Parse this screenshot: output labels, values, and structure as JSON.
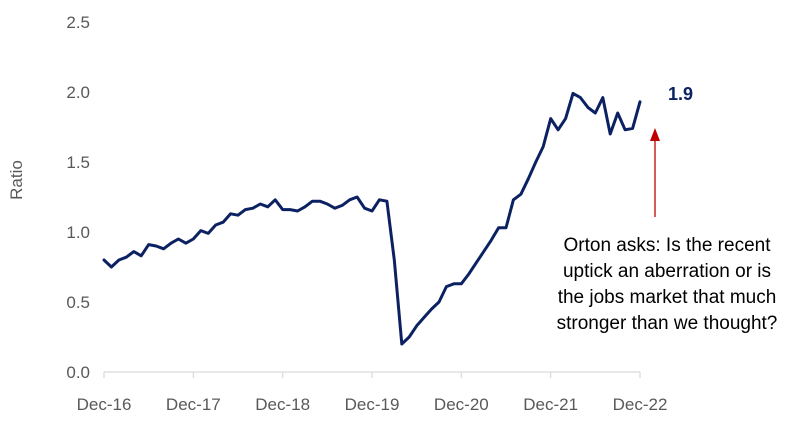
{
  "chart_data": {
    "type": "line",
    "title": "",
    "xlabel": "",
    "ylabel": "Ratio",
    "ylim": [
      0,
      2.5
    ],
    "y_ticks": [
      "0.0",
      "0.5",
      "1.0",
      "1.5",
      "2.0",
      "2.5"
    ],
    "x_ticks": [
      "Dec-16",
      "Dec-17",
      "Dec-18",
      "Dec-19",
      "Dec-20",
      "Dec-21",
      "Dec-22"
    ],
    "grid": false,
    "series": [
      {
        "color": "#0c2161",
        "x_start": "Dec-16",
        "frequency": "monthly",
        "values": [
          0.8,
          0.75,
          0.8,
          0.82,
          0.86,
          0.83,
          0.91,
          0.9,
          0.88,
          0.92,
          0.95,
          0.92,
          0.95,
          1.01,
          0.99,
          1.05,
          1.07,
          1.13,
          1.12,
          1.16,
          1.17,
          1.2,
          1.18,
          1.23,
          1.16,
          1.16,
          1.15,
          1.18,
          1.22,
          1.22,
          1.2,
          1.17,
          1.19,
          1.23,
          1.25,
          1.17,
          1.15,
          1.23,
          1.22,
          0.8,
          0.2,
          0.25,
          0.33,
          0.39,
          0.45,
          0.5,
          0.61,
          0.63,
          0.63,
          0.7,
          0.78,
          0.86,
          0.94,
          1.03,
          1.03,
          1.23,
          1.27,
          1.38,
          1.5,
          1.61,
          1.81,
          1.73,
          1.81,
          1.99,
          1.96,
          1.89,
          1.85,
          1.96,
          1.7,
          1.85,
          1.73,
          1.74,
          1.93
        ]
      }
    ],
    "last_value_label": "1.9",
    "annotation": {
      "lines": [
        "Orton asks: Is the recent",
        "uptick an aberration or is",
        "the jobs market that much",
        "stronger than we thought?"
      ],
      "arrow_color": "#c00000"
    }
  }
}
